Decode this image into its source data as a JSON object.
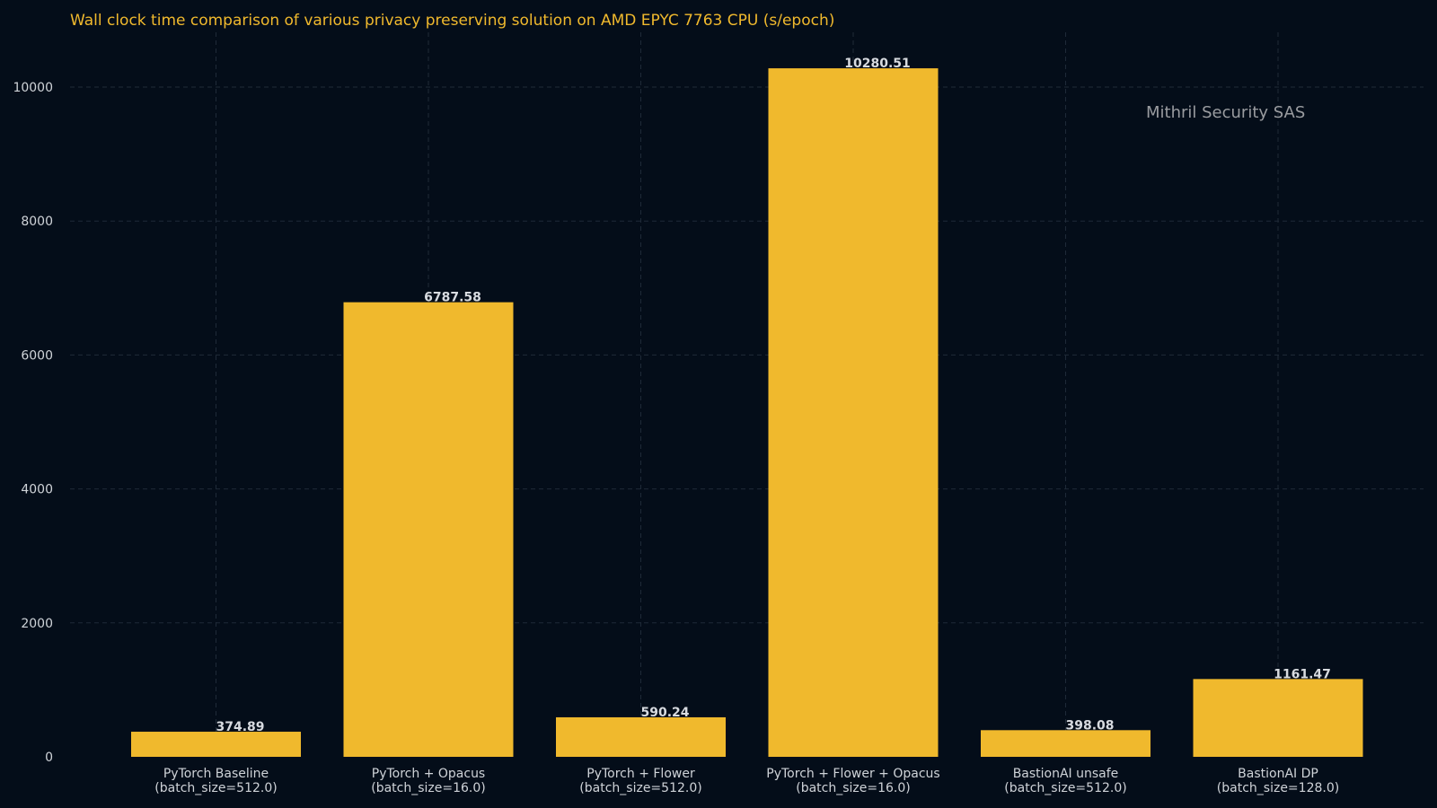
{
  "colors": {
    "background": "#040d19",
    "bar": "#f0b92d",
    "title": "#f0b92d",
    "text": "#cfd3d8",
    "grid": "#1f2a38",
    "watermark": "#9a9ca0"
  },
  "watermark": "Mithril Security SAS",
  "chart_data": {
    "type": "bar",
    "title": "Wall clock time comparison of various privacy preserving solution on AMD EPYC 7763 CPU (s/epoch)",
    "xlabel": "",
    "ylabel": "",
    "ylim": [
      0,
      10800
    ],
    "yticks": [
      0,
      2000,
      4000,
      6000,
      8000,
      10000
    ],
    "grid": true,
    "categories": [
      [
        "PyTorch Baseline",
        "(batch_size=512.0)"
      ],
      [
        "PyTorch + Opacus",
        "(batch_size=16.0)"
      ],
      [
        "PyTorch + Flower",
        "(batch_size=512.0)"
      ],
      [
        "PyTorch + Flower + Opacus",
        "(batch_size=16.0)"
      ],
      [
        "BastionAI unsafe",
        "(batch_size=512.0)"
      ],
      [
        "BastionAI DP",
        "(batch_size=128.0)"
      ]
    ],
    "values": [
      374.89,
      6787.58,
      590.24,
      10280.51,
      398.08,
      1161.47
    ],
    "value_labels": [
      "374.89",
      "6787.58",
      "590.24",
      "10280.51",
      "398.08",
      "1161.47"
    ]
  }
}
